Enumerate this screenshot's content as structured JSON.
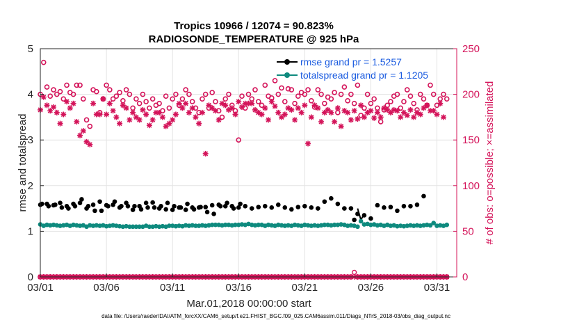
{
  "chart_data": {
    "type": "scatter",
    "title_line1": "Tropics 10966 / 12074 = 90.823%",
    "title_line2": "RADIOSONDE_TEMPERATURE @ 925 hPa",
    "xlabel": "Mar.01,2018 00:00:00 start",
    "ylabel_left": "rmse and totalspread",
    "ylabel_right": "# of obs: o=possible; ×=assimilated",
    "x_range": [
      1,
      32.5
    ],
    "x_tick_values": [
      1,
      6,
      11,
      16,
      21,
      26,
      31
    ],
    "x_tick_labels": [
      "03/01",
      "03/06",
      "03/11",
      "03/16",
      "03/21",
      "03/26",
      "03/31"
    ],
    "ylim_left": [
      0,
      5
    ],
    "y_ticks_left": [
      "0",
      "1",
      "2",
      "3",
      "4",
      "5"
    ],
    "ylim_right": [
      0,
      250
    ],
    "y_ticks_right": [
      "0",
      "50",
      "100",
      "150",
      "200",
      "250"
    ],
    "grid": true,
    "legend": {
      "position": "top-right",
      "entries": [
        "rmse grand pr = 1.5257",
        "totalspread grand pr = 1.1205"
      ]
    },
    "footnote": "data file: /Users/raeder/DAI/ATM_forcXX/CAM6_setup/f.e21.FHIST_BGC.f09_025.CAM6assim.011/Diags_NTrS_2018-03/obs_diag_output.nc",
    "x": [
      1,
      1.25,
      1.5,
      1.75,
      2,
      2.25,
      2.5,
      2.75,
      3,
      3.25,
      3.5,
      3.75,
      4,
      4.25,
      4.5,
      4.75,
      5,
      5.25,
      5.5,
      5.75,
      6,
      6.25,
      6.5,
      6.75,
      7,
      7.25,
      7.5,
      7.75,
      8,
      8.25,
      8.5,
      8.75,
      9,
      9.25,
      9.5,
      9.75,
      10,
      10.25,
      10.5,
      10.75,
      11,
      11.25,
      11.5,
      11.75,
      12,
      12.25,
      12.5,
      12.75,
      13,
      13.25,
      13.5,
      13.75,
      14,
      14.25,
      14.5,
      14.75,
      15,
      15.25,
      15.5,
      15.75,
      16,
      16.25,
      16.5,
      16.75,
      17,
      17.25,
      17.5,
      17.75,
      18,
      18.25,
      18.5,
      18.75,
      19,
      19.25,
      19.5,
      19.75,
      20,
      20.25,
      20.5,
      20.75,
      21,
      21.25,
      21.5,
      21.75,
      22,
      22.25,
      22.5,
      22.75,
      23,
      23.25,
      23.5,
      23.75,
      24,
      24.25,
      24.5,
      24.75,
      25,
      25.25,
      25.5,
      25.75,
      26,
      26.25,
      26.5,
      26.75,
      27,
      27.25,
      27.5,
      27.75,
      28,
      28.25,
      28.5,
      28.75,
      29,
      29.25,
      29.5,
      29.75,
      30,
      30.25,
      30.5,
      30.75,
      31,
      31.25,
      31.5,
      31.75
    ],
    "rmse": [
      1.58,
      null,
      1.6,
      null,
      1.57,
      null,
      1.62,
      null,
      1.55,
      null,
      1.6,
      null,
      1.62,
      null,
      1.5,
      null,
      1.58,
      null,
      1.65,
      null,
      1.57,
      null,
      1.58,
      null,
      1.52,
      null,
      1.62,
      null,
      1.47,
      null,
      1.55,
      null,
      1.62,
      null,
      1.63,
      null,
      1.5,
      null,
      1.48,
      null,
      1.47,
      null,
      1.52,
      null,
      1.47,
      null,
      1.52,
      null,
      1.52,
      null,
      1.53,
      null,
      1.57,
      null,
      1.58,
      null,
      1.55,
      null,
      1.55,
      null,
      1.52,
      null,
      1.55,
      null,
      1.5,
      null,
      1.53,
      null,
      1.55,
      null,
      1.52,
      null,
      1.58,
      null,
      1.52,
      null,
      1.48,
      null,
      1.53,
      null,
      1.55,
      null,
      1.52,
      null,
      1.5,
      null,
      1.65,
      null,
      1.72,
      null,
      1.6,
      null,
      1.5,
      null,
      1.5,
      1.25,
      1.38,
      null,
      1.35,
      null,
      1.28,
      null,
      1.57,
      null,
      1.52,
      null,
      1.53,
      null,
      1.45,
      null,
      1.55,
      null,
      1.55,
      null,
      1.58,
      null,
      1.77,
      null
    ],
    "rmse_extra": [
      1.6,
      null,
      1.55,
      null,
      1.58,
      null,
      1.52,
      null,
      1.5,
      null,
      1.55,
      null,
      1.7,
      null,
      1.55,
      null,
      1.45,
      null,
      1.45,
      null,
      1.55,
      null,
      1.65,
      null,
      1.55,
      null,
      1.55,
      null,
      1.55,
      null,
      1.48,
      null,
      1.52,
      null,
      1.52,
      null,
      1.55,
      null,
      1.62,
      null,
      1.55,
      null,
      1.52,
      null,
      1.6,
      null,
      1.48,
      null,
      1.53,
      null,
      1.42,
      null,
      1.38,
      null,
      1.55,
      null,
      1.62,
      null,
      1.5,
      null,
      1.6
    ],
    "totalspread": [
      1.15,
      1.12,
      1.14,
      1.13,
      1.14,
      1.13,
      1.12,
      1.13,
      1.14,
      1.12,
      1.14,
      1.13,
      1.12,
      1.13,
      1.1,
      1.13,
      1.12,
      1.13,
      1.12,
      1.13,
      1.11,
      1.12,
      1.13,
      1.12,
      1.11,
      1.1,
      1.11,
      1.1,
      1.1,
      1.1,
      1.1,
      1.1,
      1.12,
      1.1,
      1.1,
      1.11,
      1.1,
      1.11,
      1.1,
      1.12,
      1.12,
      1.11,
      1.12,
      1.11,
      1.13,
      1.12,
      1.13,
      1.12,
      1.12,
      1.13,
      1.12,
      1.13,
      1.14,
      1.14,
      1.14,
      1.13,
      1.14,
      1.14,
      1.13,
      1.14,
      1.14,
      1.15,
      1.14,
      1.16,
      1.14,
      1.13,
      1.14,
      1.14,
      1.12,
      1.14,
      1.13,
      1.12,
      1.14,
      1.13,
      1.12,
      1.13,
      1.12,
      1.14,
      1.13,
      1.12,
      1.14,
      1.13,
      1.12,
      1.13,
      1.12,
      1.13,
      1.14,
      1.14,
      1.13,
      1.14,
      1.14,
      1.15,
      1.14,
      1.12,
      1.13,
      1.12,
      1.1,
      1.22,
      1.15,
      1.16,
      1.14,
      1.15,
      1.13,
      1.14,
      1.12,
      1.14,
      1.12,
      1.13,
      1.11,
      1.12,
      1.11,
      1.12,
      1.13,
      1.12,
      1.13,
      1.12,
      1.13,
      1.14,
      1.13,
      1.18,
      1.12,
      1.13,
      1.12,
      1.14,
      1.13,
      1.12,
      1.13
    ],
    "obs_possible": [
      200,
      235,
      208,
      198,
      205,
      200,
      203,
      195,
      210,
      202,
      200,
      210,
      210,
      195,
      172,
      165,
      205,
      203,
      180,
      195,
      210,
      205,
      195,
      198,
      202,
      193,
      205,
      200,
      185,
      195,
      190,
      200,
      192,
      185,
      195,
      188,
      190,
      182,
      198,
      185,
      195,
      200,
      188,
      195,
      205,
      200,
      192,
      185,
      180,
      195,
      200,
      185,
      202,
      192,
      182,
      175,
      195,
      200,
      188,
      182,
      150,
      198,
      185,
      200,
      195,
      205,
      192,
      188,
      210,
      198,
      196,
      215,
      200,
      207,
      192,
      206,
      205,
      190,
      198,
      202,
      200,
      205,
      193,
      186,
      205,
      200,
      190,
      197,
      195,
      202,
      180,
      200,
      208,
      193,
      200,
      190,
      210,
      177,
      185,
      200,
      190,
      195,
      185,
      170,
      183,
      188,
      192,
      198,
      200,
      185,
      192,
      205,
      198,
      190,
      183,
      200,
      195,
      188,
      210,
      200,
      188,
      195,
      200,
      195,
      190,
      187,
      205,
      178,
      200
    ],
    "obs_assimilated": [
      183,
      197,
      188,
      182,
      186,
      180,
      168,
      178,
      192,
      185,
      190,
      170,
      155,
      160,
      148,
      145,
      190,
      178,
      178,
      195,
      178,
      190,
      182,
      175,
      168,
      188,
      185,
      172,
      180,
      175,
      172,
      183,
      178,
      166,
      172,
      180,
      180,
      175,
      165,
      168,
      172,
      178,
      190,
      185,
      190,
      180,
      185,
      175,
      168,
      180,
      135,
      188,
      185,
      182,
      172,
      190,
      188,
      183,
      185,
      178,
      192,
      186,
      190,
      190,
      190,
      183,
      180,
      178,
      185,
      172,
      192,
      187,
      180,
      175,
      178,
      185,
      183,
      172,
      185,
      180,
      188,
      146,
      175,
      188,
      185,
      170,
      180,
      183,
      180,
      170,
      185,
      165,
      182,
      180,
      172,
      182,
      173,
      188,
      175,
      180,
      182,
      174,
      180,
      175,
      185,
      183,
      180,
      183,
      182,
      175,
      180,
      177,
      183,
      175,
      180,
      178,
      185,
      188,
      182,
      182,
      178,
      190,
      175
    ],
    "obs_possible_low": [
      0,
      0,
      0,
      0,
      0,
      0,
      0,
      0,
      0,
      0,
      0,
      0,
      0,
      0,
      0,
      0,
      0,
      0,
      0,
      0,
      0,
      0,
      0,
      0,
      0,
      0,
      0,
      0,
      0,
      0,
      0,
      0,
      0,
      0,
      0,
      0,
      0,
      0,
      0,
      0,
      0,
      0,
      0,
      0,
      0,
      0,
      0,
      0,
      0,
      0,
      0,
      0,
      0,
      0,
      0,
      0,
      0,
      0,
      0,
      0,
      0,
      0,
      0,
      0,
      0,
      0,
      0,
      0,
      0,
      0,
      0,
      0,
      0,
      0,
      0,
      0,
      0,
      0,
      0,
      0,
      0,
      0,
      0,
      0,
      0,
      0,
      0,
      0,
      0,
      0,
      0,
      0,
      0,
      0,
      0,
      5,
      0,
      0,
      0,
      0,
      0,
      0,
      0,
      0,
      0,
      0,
      0,
      0,
      0,
      0,
      0,
      0,
      0,
      0,
      0,
      0,
      0,
      0,
      0,
      0,
      0,
      0,
      0,
      0,
      0,
      0,
      0
    ]
  }
}
